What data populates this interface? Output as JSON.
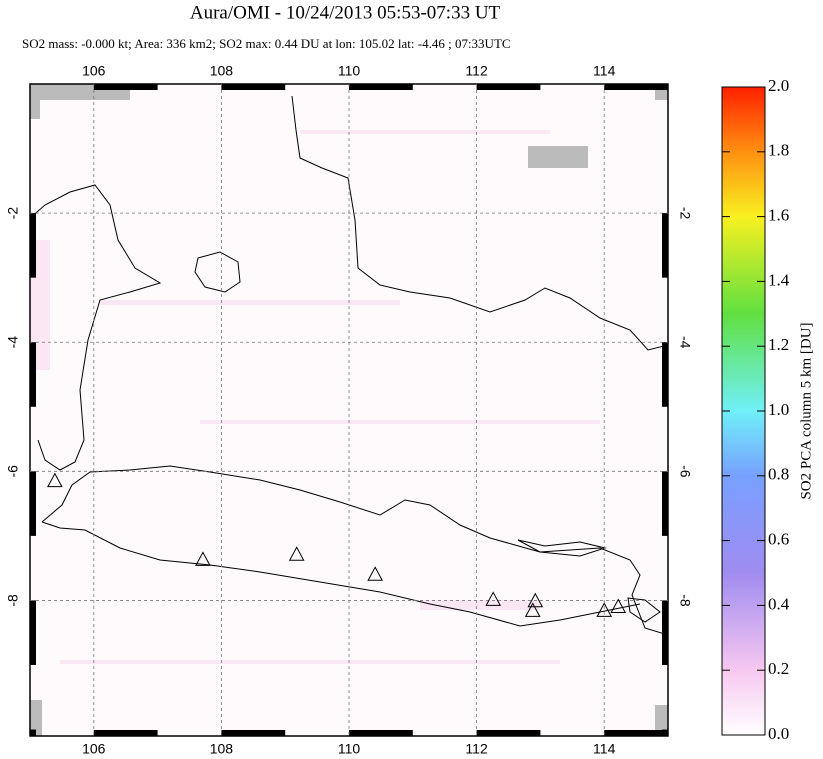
{
  "chart_data": {
    "type": "map",
    "title": "Aura/OMI - 10/24/2013 05:53-07:33 UT",
    "subtitle": "SO2 mass: -0.000 kt; Area: 336 km2; SO2 max: 0.44 DU at lon: 105.02 lat: -4.46 ; 07:33UTC",
    "xlim": [
      105,
      115
    ],
    "xticks": [
      106,
      108,
      110,
      112,
      114
    ],
    "ylim": [
      -10.1,
      0
    ],
    "yticks": [
      -2,
      -4,
      -6,
      -8
    ],
    "grid": true,
    "volcanoes": [
      {
        "lon": 105.39,
        "lat": -6.16
      },
      {
        "lon": 107.71,
        "lat": -7.38
      },
      {
        "lon": 109.18,
        "lat": -7.3
      },
      {
        "lon": 110.41,
        "lat": -7.61
      },
      {
        "lon": 112.26,
        "lat": -8.0
      },
      {
        "lon": 112.92,
        "lat": -8.02
      },
      {
        "lon": 112.88,
        "lat": -8.17
      },
      {
        "lon": 114.0,
        "lat": -8.17
      },
      {
        "lon": 114.22,
        "lat": -8.11
      }
    ],
    "colorbar": {
      "label": "SO2 PCA column 5 km [DU]",
      "lim": [
        0,
        2
      ],
      "ticks": [
        {
          "value": 0,
          "label": "0.0"
        },
        {
          "value": 0.2,
          "label": "0.2"
        },
        {
          "value": 0.4,
          "label": "0.4"
        },
        {
          "value": 0.6,
          "label": "0.6"
        },
        {
          "value": 0.8,
          "label": "0.8"
        },
        {
          "value": 1,
          "label": "1.0"
        },
        {
          "value": 1.2,
          "label": "1.2"
        },
        {
          "value": 1.4,
          "label": "1.4"
        },
        {
          "value": 1.6,
          "label": "1.6"
        },
        {
          "value": 1.8,
          "label": "1.8"
        },
        {
          "value": 2,
          "label": "2.0"
        }
      ]
    }
  }
}
